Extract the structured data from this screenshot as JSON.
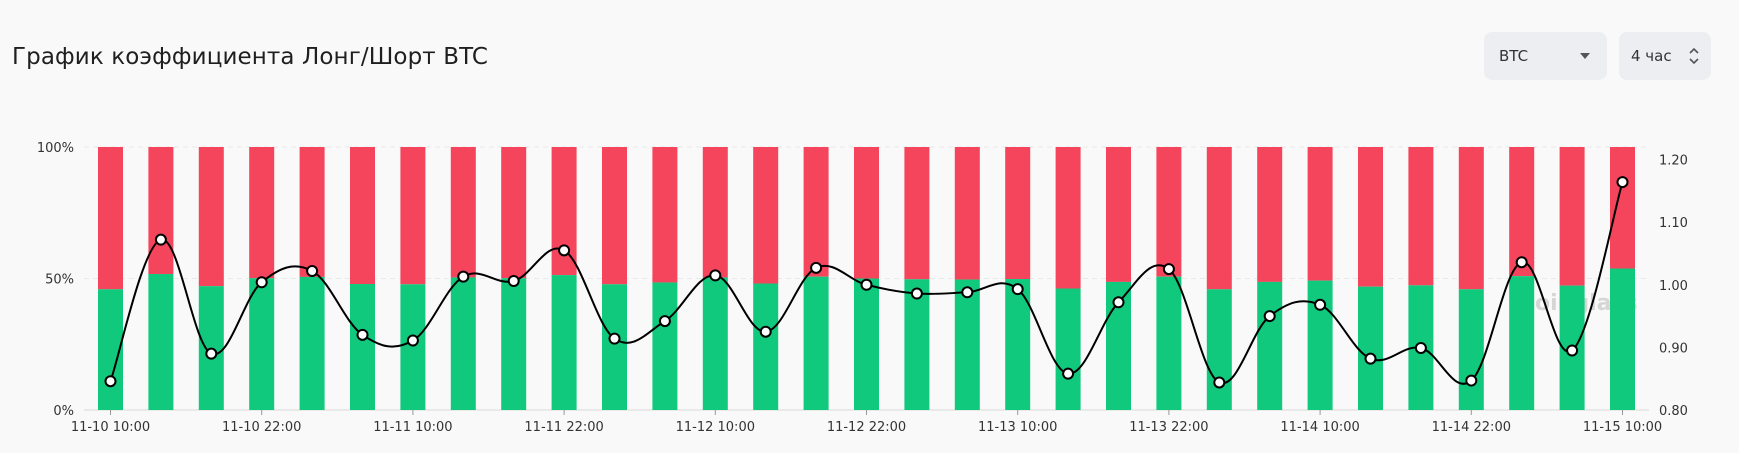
{
  "header": {
    "title": "График коэффициента Лонг/Шорт BTC",
    "coin_select": "BTC",
    "interval_select": "4 час"
  },
  "watermark": "coinglass",
  "colors": {
    "long": "#10c97d",
    "short": "#f5455c",
    "line": "#000000"
  },
  "chart_data": {
    "type": "bar",
    "title": "График коэффициента Лонг/Шорт BTC",
    "stacked": true,
    "x_tick_labels": [
      "11-10 10:00",
      "11-10 22:00",
      "11-11 10:00",
      "11-11 22:00",
      "11-12 10:00",
      "11-12 22:00",
      "11-13 10:00",
      "11-13 22:00",
      "11-14 10:00",
      "11-14 22:00",
      "11-15 10:00"
    ],
    "x_tick_every": 3,
    "y_left": {
      "range": [
        0,
        100
      ],
      "ticks": [
        "0%",
        "50%",
        "100%"
      ]
    },
    "y_right": {
      "range": [
        0.8,
        1.22
      ],
      "ticks": [
        "0.80",
        "0.90",
        "1.00",
        "1.10",
        "1.20"
      ]
    },
    "long_percent": [
      45.9,
      51.7,
      47.1,
      50.1,
      50.6,
      47.9,
      47.8,
      50.4,
      50.1,
      51.3,
      47.8,
      48.5,
      50.4,
      48.1,
      50.7,
      50.0,
      49.7,
      49.6,
      49.8,
      46.2,
      48.7,
      50.7,
      45.9,
      48.7,
      49.2,
      46.9,
      47.4,
      45.9,
      50.9,
      47.3,
      53.8
    ],
    "ratio": [
      0.846,
      1.072,
      0.89,
      1.004,
      1.022,
      0.92,
      0.911,
      1.013,
      1.006,
      1.055,
      0.914,
      0.942,
      1.015,
      0.925,
      1.027,
      1.0,
      0.986,
      0.988,
      0.993,
      0.858,
      0.972,
      1.025,
      0.844,
      0.95,
      0.968,
      0.882,
      0.899,
      0.847,
      1.036,
      0.895,
      1.164
    ],
    "series": [
      {
        "name": "",
        "kind": "bar-long",
        "values_ref": "long_percent"
      },
      {
        "name": "",
        "kind": "bar-short"
      },
      {
        "name": "",
        "kind": "line",
        "values_ref": "ratio"
      }
    ],
    "grid": true,
    "legend": "none"
  }
}
